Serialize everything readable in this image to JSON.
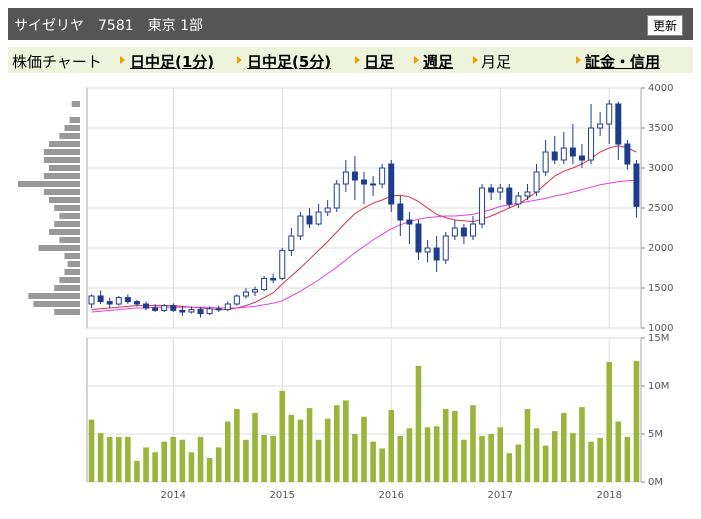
{
  "header": {
    "title": "サイゼリヤ　7581　東京 1部",
    "button": "更新"
  },
  "tabs": [
    "株価チャート",
    "日中足(1分)",
    "日中足(5分)",
    "日足",
    "週足",
    "月足",
    "証金・信用"
  ],
  "chart_data": [
    {
      "type": "candlestick",
      "open": [
        1300,
        1400,
        1330,
        1300,
        1380,
        1330,
        1300,
        1250,
        1220,
        1280,
        1220,
        1200,
        1230,
        1180,
        1240,
        1230,
        1300,
        1400,
        1450,
        1480,
        1620,
        1620,
        1970,
        2150,
        2400,
        2300,
        2450,
        2500,
        2800,
        2950,
        2850,
        2800,
        2800,
        3050,
        2550,
        2350,
        2300,
        1950,
        2000,
        1850,
        2150,
        2250,
        2150,
        2300,
        2750,
        2700,
        2750,
        2550,
        2650,
        2700,
        2950,
        3200,
        3100,
        3250,
        3150,
        3100,
        3500,
        3550,
        3800,
        3300,
        3050
      ],
      "high": [
        1420,
        1470,
        1380,
        1400,
        1420,
        1350,
        1330,
        1300,
        1300,
        1310,
        1280,
        1270,
        1260,
        1270,
        1280,
        1330,
        1420,
        1500,
        1520,
        1650,
        1680,
        2000,
        2250,
        2450,
        2500,
        2550,
        2600,
        2850,
        3100,
        3150,
        2950,
        2900,
        3050,
        3100,
        2650,
        2450,
        2350,
        2100,
        2150,
        2200,
        2350,
        2300,
        2400,
        2800,
        2800,
        2800,
        2800,
        2700,
        2800,
        3050,
        3350,
        3400,
        3450,
        3550,
        3300,
        3800,
        3700,
        3850,
        3830,
        3350,
        3100
      ],
      "low": [
        1250,
        1300,
        1250,
        1280,
        1300,
        1270,
        1220,
        1200,
        1200,
        1200,
        1150,
        1180,
        1130,
        1160,
        1200,
        1210,
        1280,
        1370,
        1400,
        1460,
        1560,
        1600,
        1900,
        2100,
        2250,
        2280,
        2400,
        2450,
        2700,
        2600,
        2550,
        2650,
        2750,
        2450,
        2150,
        2050,
        1850,
        1820,
        1700,
        1800,
        2100,
        2050,
        2100,
        2250,
        2600,
        2600,
        2500,
        2500,
        2600,
        2650,
        2900,
        3050,
        3050,
        3050,
        3000,
        3050,
        3400,
        3300,
        3100,
        2980,
        2380
      ],
      "close": [
        1400,
        1330,
        1300,
        1380,
        1330,
        1300,
        1250,
        1220,
        1280,
        1220,
        1200,
        1230,
        1180,
        1240,
        1230,
        1300,
        1400,
        1450,
        1480,
        1620,
        1600,
        1970,
        2150,
        2400,
        2300,
        2450,
        2500,
        2800,
        2950,
        2850,
        2800,
        2800,
        3000,
        2550,
        2350,
        2300,
        1950,
        2000,
        1850,
        2150,
        2250,
        2150,
        2300,
        2750,
        2700,
        2750,
        2550,
        2650,
        2700,
        2950,
        3200,
        3100,
        3250,
        3150,
        3100,
        3500,
        3550,
        3800,
        3300,
        3050,
        2520
      ],
      "up_color": "#ffffff",
      "down_color": "#1f3d8f",
      "edge_color": "#1f3d8f",
      "series": [
        {
          "color": "#d8314c",
          "values": [
            1230,
            1240,
            1250,
            1260,
            1270,
            1280,
            1280,
            1280,
            1280,
            1280,
            1270,
            1260,
            1250,
            1240,
            1230,
            1230,
            1250,
            1280,
            1320,
            1380,
            1440,
            1550,
            1650,
            1750,
            1860,
            1970,
            2080,
            2200,
            2320,
            2430,
            2500,
            2560,
            2600,
            2650,
            2660,
            2640,
            2580,
            2500,
            2420,
            2380,
            2350,
            2340,
            2330,
            2360,
            2400,
            2450,
            2500,
            2550,
            2620,
            2700,
            2800,
            2900,
            2960,
            3000,
            3050,
            3120,
            3200,
            3250,
            3280,
            3250,
            3200
          ]
        },
        {
          "color": "#dd44dd",
          "values": [
            1200,
            1210,
            1220,
            1230,
            1240,
            1250,
            1250,
            1260,
            1260,
            1260,
            1260,
            1260,
            1260,
            1260,
            1250,
            1250,
            1250,
            1260,
            1270,
            1290,
            1310,
            1340,
            1400,
            1460,
            1530,
            1600,
            1680,
            1760,
            1850,
            1940,
            2020,
            2100,
            2170,
            2240,
            2290,
            2330,
            2360,
            2380,
            2390,
            2400,
            2400,
            2410,
            2420,
            2450,
            2480,
            2520,
            2540,
            2560,
            2580,
            2600,
            2620,
            2650,
            2670,
            2700,
            2730,
            2760,
            2790,
            2810,
            2830,
            2840,
            2850
          ]
        }
      ],
      "volume_profile": {
        "color": "#999999",
        "prices": [
          1200,
          1300,
          1400,
          1500,
          1600,
          1700,
          1800,
          1900,
          2000,
          2100,
          2200,
          2300,
          2400,
          2500,
          2600,
          2700,
          2800,
          2900,
          3000,
          3100,
          3200,
          3300,
          3400,
          3500,
          3600,
          3700,
          3800
        ],
        "values": [
          25,
          45,
          50,
          25,
          20,
          15,
          12,
          15,
          40,
          20,
          30,
          25,
          20,
          25,
          30,
          35,
          60,
          35,
          30,
          35,
          35,
          30,
          20,
          15,
          10,
          0,
          8
        ]
      },
      "ylim": [
        1000,
        4000
      ],
      "yticks": [
        1000,
        1500,
        2000,
        2500,
        3000,
        3500,
        4000
      ],
      "grid": true
    },
    {
      "type": "bar",
      "color": "#9bb43c",
      "categories": [
        null,
        null,
        null,
        null,
        null,
        null,
        null,
        null,
        null,
        "2014",
        null,
        null,
        null,
        null,
        null,
        null,
        null,
        null,
        null,
        null,
        null,
        "2015",
        null,
        null,
        null,
        null,
        null,
        null,
        null,
        null,
        null,
        null,
        null,
        "2016",
        null,
        null,
        null,
        null,
        null,
        null,
        null,
        null,
        null,
        null,
        null,
        "2017",
        null,
        null,
        null,
        null,
        null,
        null,
        null,
        null,
        null,
        null,
        null,
        "2018",
        null,
        null,
        null
      ],
      "values": [
        6.5,
        5.1,
        4.7,
        4.7,
        4.7,
        2.2,
        3.6,
        3.1,
        4.2,
        4.7,
        4.4,
        3.1,
        4.7,
        2.5,
        3.6,
        6.3,
        7.6,
        4.4,
        7.2,
        4.9,
        4.8,
        9.5,
        7.0,
        6.5,
        7.7,
        4.4,
        6.6,
        8.0,
        8.5,
        5.0,
        6.8,
        4.2,
        3.5,
        7.5,
        4.8,
        5.6,
        12.1,
        5.7,
        5.8,
        7.6,
        7.4,
        4.4,
        8.0,
        4.8,
        5.0,
        5.7,
        3.0,
        3.9,
        7.6,
        5.6,
        3.8,
        5.3,
        7.2,
        5.1,
        7.8,
        4.2,
        4.6,
        12.5,
        6.3,
        4.7,
        12.6
      ],
      "ylim": [
        0,
        15
      ],
      "yticks": [
        {
          "value": 0,
          "label": "0M"
        },
        {
          "value": 5,
          "label": "5M"
        },
        {
          "value": 10,
          "label": "10M"
        },
        {
          "value": 15,
          "label": "15M"
        }
      ],
      "grid": true
    }
  ]
}
